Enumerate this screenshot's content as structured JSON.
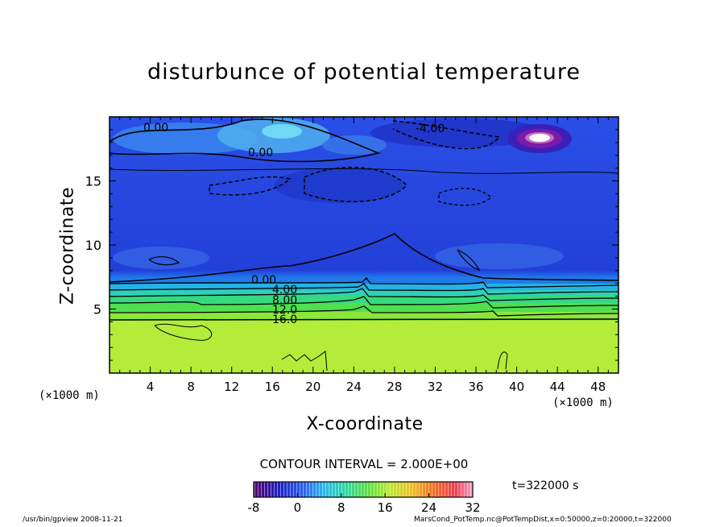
{
  "chart_data": {
    "type": "heatmap",
    "title": "disturbunce of potential temperature",
    "xlabel": "X-coordinate",
    "ylabel": "Z-coordinate",
    "x_unit_left": "(×1000 m)",
    "x_unit_right": "(×1000 m)",
    "xlim": [
      0,
      50
    ],
    "ylim": [
      0,
      20
    ],
    "xticks": [
      "4",
      "8",
      "12",
      "16",
      "20",
      "24",
      "28",
      "32",
      "36",
      "40",
      "44",
      "48"
    ],
    "yticks": [
      "5",
      "10",
      "15"
    ],
    "contour_labels": [
      "0.00",
      "0.00",
      "-4.00",
      "0.00",
      "4.00",
      "8.00",
      "12.0",
      "16.0"
    ],
    "contour_interval": "CONTOUR INTERVAL = 2.000E+00",
    "colorbar": {
      "ticks": [
        "-8",
        "0",
        "8",
        "16",
        "24",
        "32"
      ],
      "range": [
        -8,
        32
      ]
    },
    "time": "t=322000 s"
  },
  "footer": {
    "left": "/usr/bin/gpview   2008-11-21",
    "right": "MarsCond_PotTemp.nc@PotTempDist,x=0:50000,z=0:20000,t=322000"
  }
}
